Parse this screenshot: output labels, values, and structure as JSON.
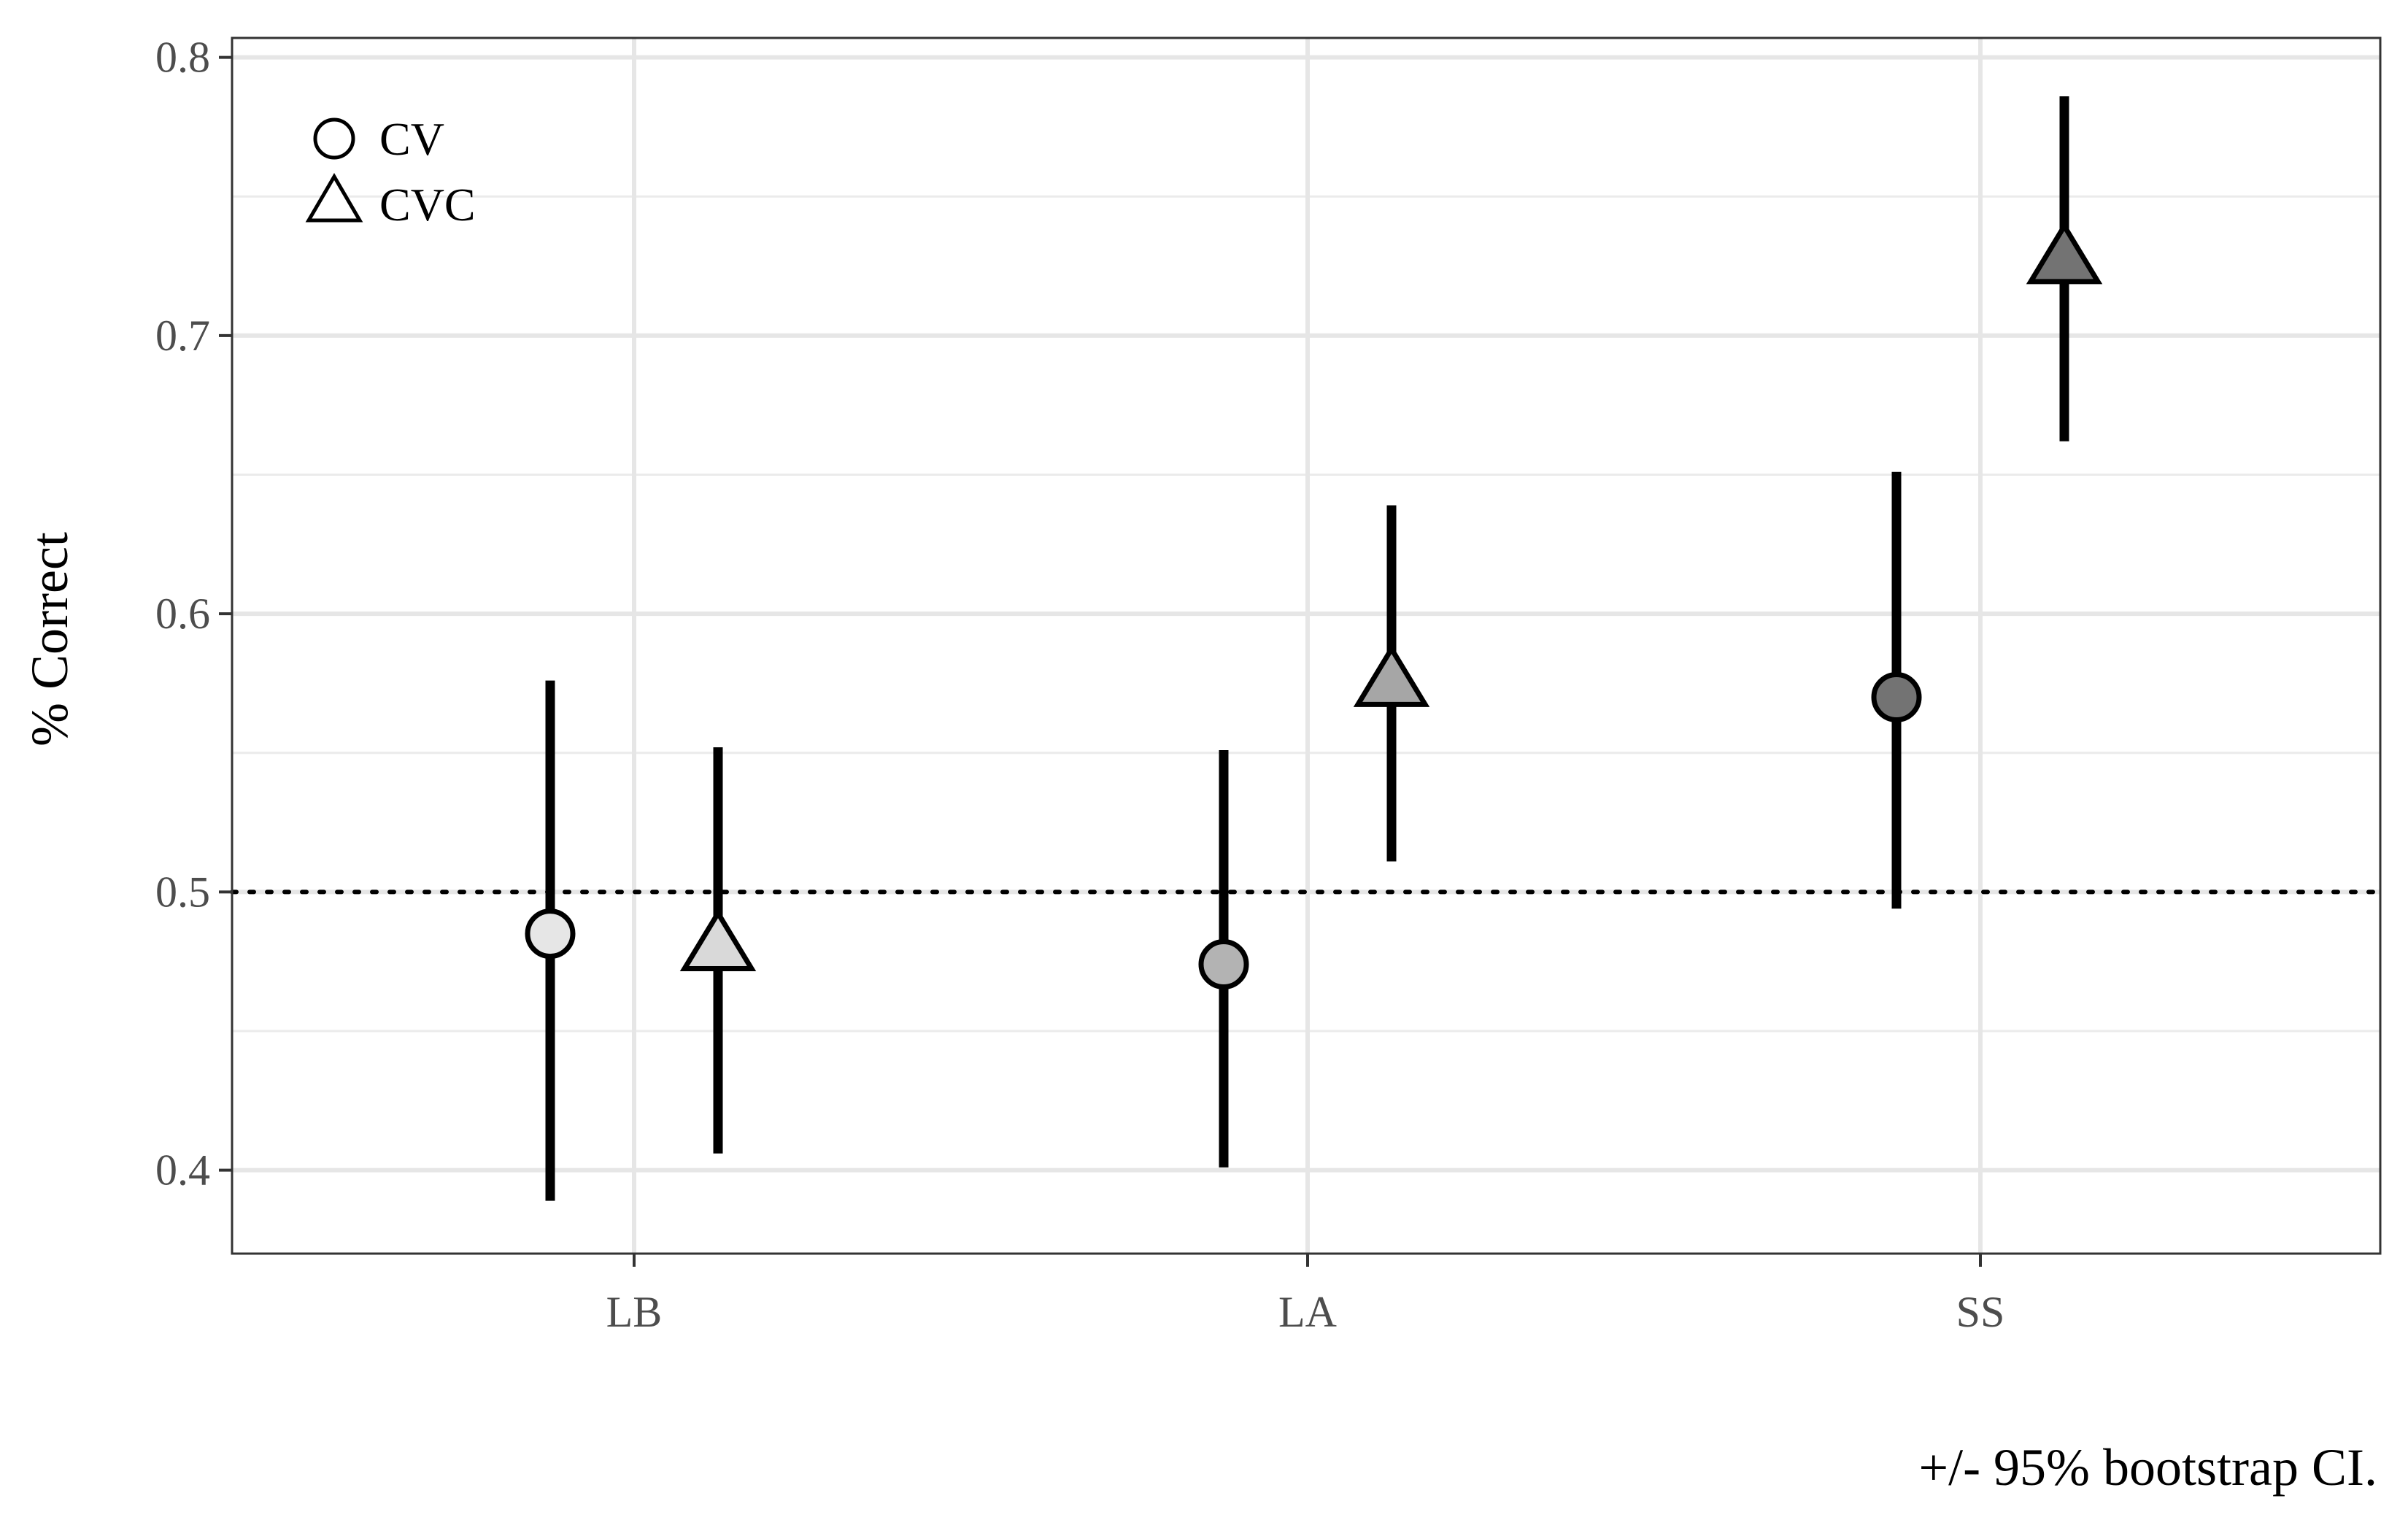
{
  "chart_data": {
    "type": "scatter",
    "title": "",
    "xlabel": "",
    "ylabel": "% Correct",
    "caption": "+/- 95% bootstrap CI.",
    "categories": [
      "LB",
      "LA",
      "SS"
    ],
    "ylim": [
      0.37,
      0.807
    ],
    "yticks": [
      0.4,
      0.5,
      0.6,
      0.7,
      0.8
    ],
    "ytick_labels": [
      "0.4",
      "0.5",
      "0.6",
      "0.7",
      "0.8"
    ],
    "reference_line": {
      "y": 0.5,
      "style": "dotted"
    },
    "grid": true,
    "legend_position": "top-left",
    "series": [
      {
        "name": "CV",
        "marker": "circle",
        "values": [
          0.485,
          0.474,
          0.57
        ],
        "ci_low": [
          0.389,
          0.401,
          0.494
        ],
        "ci_high": [
          0.576,
          0.551,
          0.651
        ],
        "fills": [
          "#e6e6e6",
          "#b3b3b3",
          "#737373"
        ]
      },
      {
        "name": "CVC",
        "marker": "triangle",
        "values": [
          0.48,
          0.575,
          0.727
        ],
        "ci_low": [
          0.406,
          0.511,
          0.662
        ],
        "ci_high": [
          0.552,
          0.639,
          0.786
        ],
        "fills": [
          "#d9d9d9",
          "#a6a6a6",
          "#737373"
        ]
      }
    ]
  }
}
